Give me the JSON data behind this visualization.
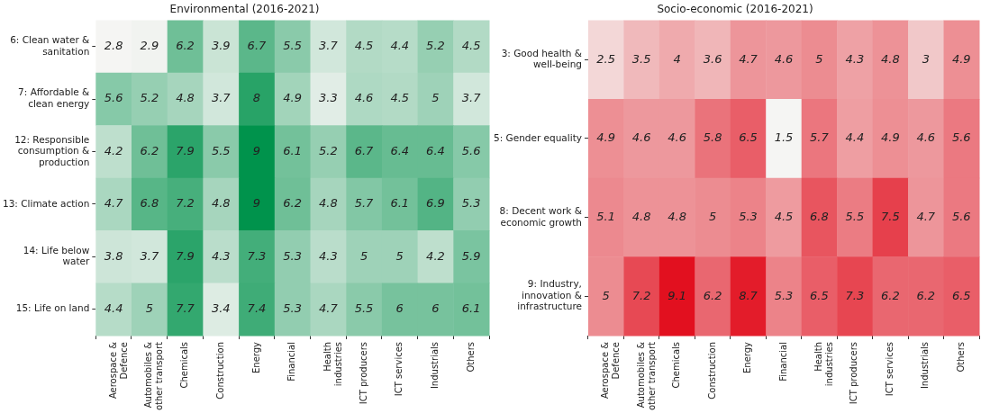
{
  "chart_data": [
    {
      "type": "heatmap",
      "title": "Environmental (2016-2021)",
      "color": "#00934c",
      "categories": [
        "Aerospace & Defence",
        "Automobiles & other transport",
        "Chemicals",
        "Construction",
        "Energy",
        "Financial",
        "Health industries",
        "ICT producers",
        "ICT services",
        "Industrials",
        "Others"
      ],
      "y_categories": [
        "6: Clean water & sanitation",
        "7: Affordable & clean energy",
        "12: Responsible consumption & production",
        "13: Climate action",
        "14: Life below water",
        "15: Life on land"
      ],
      "cells": [
        [
          2.8,
          2.9,
          6.2,
          3.9,
          6.7,
          5.5,
          3.7,
          4.5,
          4.4,
          5.2,
          4.5
        ],
        [
          5.6,
          5.2,
          4.8,
          3.7,
          8,
          4.9,
          3.3,
          4.6,
          4.5,
          5,
          3.7
        ],
        [
          4.2,
          6.2,
          7.9,
          5.5,
          9,
          6.1,
          5.2,
          6.7,
          6.4,
          6.4,
          5.6
        ],
        [
          4.7,
          6.8,
          7.2,
          4.8,
          9,
          6.2,
          4.8,
          5.7,
          6.1,
          6.9,
          5.3
        ],
        [
          3.8,
          3.7,
          7.9,
          4.3,
          7.3,
          5.3,
          4.3,
          5,
          5,
          4.2,
          5.9
        ],
        [
          4.4,
          5,
          7.7,
          3.4,
          7.4,
          5.3,
          4.7,
          5.5,
          6,
          6,
          6.1
        ]
      ],
      "data_labels": true
    },
    {
      "type": "heatmap",
      "title": "Socio-economic (2016-2021)",
      "color": "#e2101f",
      "categories": [
        "Aerospace & Defence",
        "Automobiles & other transport",
        "Chemicals",
        "Construction",
        "Energy",
        "Financial",
        "Health industries",
        "ICT producers",
        "ICT services",
        "Industrials",
        "Others"
      ],
      "y_categories": [
        "3: Good health & well-being",
        "5: Gender equality",
        "8: Decent work & economic growth",
        "9: Industry, innovation & infrastructure"
      ],
      "cells": [
        [
          2.5,
          3.5,
          4,
          3.6,
          4.7,
          4.6,
          5,
          4.3,
          4.8,
          3,
          4.9
        ],
        [
          4.9,
          4.6,
          4.6,
          5.8,
          6.5,
          1.5,
          5.7,
          4.4,
          4.9,
          4.6,
          5.6
        ],
        [
          5.1,
          4.8,
          4.8,
          5,
          5.3,
          4.5,
          6.8,
          5.5,
          7.5,
          4.7,
          5.6
        ],
        [
          5,
          7.2,
          9.1,
          6.2,
          8.7,
          5.3,
          6.5,
          7.3,
          6.2,
          6.2,
          6.5
        ]
      ],
      "data_labels": true
    }
  ]
}
